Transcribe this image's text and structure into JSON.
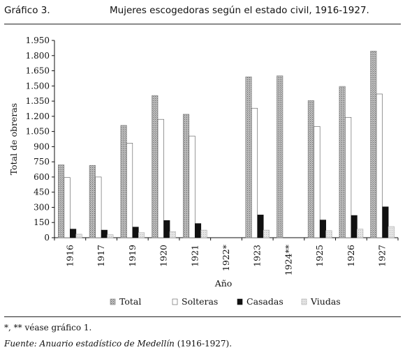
{
  "header": {
    "label": "Gráfico 3.",
    "title": "Mujeres escogedoras según el estado civil, 1916-1927."
  },
  "chart_data": {
    "type": "bar",
    "title": "",
    "xlabel": "Año",
    "ylabel": "Total de obreras",
    "categories": [
      "1916",
      "1917",
      "1919",
      "1920",
      "1921",
      "1922*",
      "1923",
      "1924**",
      "1925",
      "1926",
      "1927"
    ],
    "ylim": [
      0,
      1950
    ],
    "yticks": [
      0,
      150,
      300,
      450,
      600,
      750,
      900,
      1050,
      1200,
      1350,
      1500,
      1650,
      1800,
      1950
    ],
    "ytick_labels": [
      "0",
      "150",
      "300",
      "450",
      "600",
      "750",
      "900",
      "1.050",
      "1.200",
      "1.350",
      "1.500",
      "1.650",
      "1.800",
      "1.950"
    ],
    "grid": false,
    "legend_position": "bottom",
    "series": [
      {
        "name": "Total",
        "color": "#a0a0a0",
        "values": [
          720,
          715,
          1110,
          1405,
          1220,
          null,
          1590,
          1600,
          1355,
          1495,
          1845
        ]
      },
      {
        "name": "Solteras",
        "color": "#ffffff",
        "values": [
          595,
          600,
          935,
          1170,
          1005,
          null,
          1280,
          null,
          1100,
          1190,
          1420
        ]
      },
      {
        "name": "Casadas",
        "color": "#111111",
        "values": [
          85,
          75,
          105,
          170,
          140,
          null,
          225,
          null,
          175,
          220,
          305
        ]
      },
      {
        "name": "Viudas",
        "color": "#d8d8d8",
        "values": [
          35,
          30,
          50,
          60,
          75,
          null,
          75,
          null,
          70,
          85,
          110
        ]
      }
    ]
  },
  "footer": {
    "note": "*, ** véase gráfico 1.",
    "source_label": "Fuente: Anuario estadístico de Medellín",
    "source_years": " (1916-1927)."
  }
}
